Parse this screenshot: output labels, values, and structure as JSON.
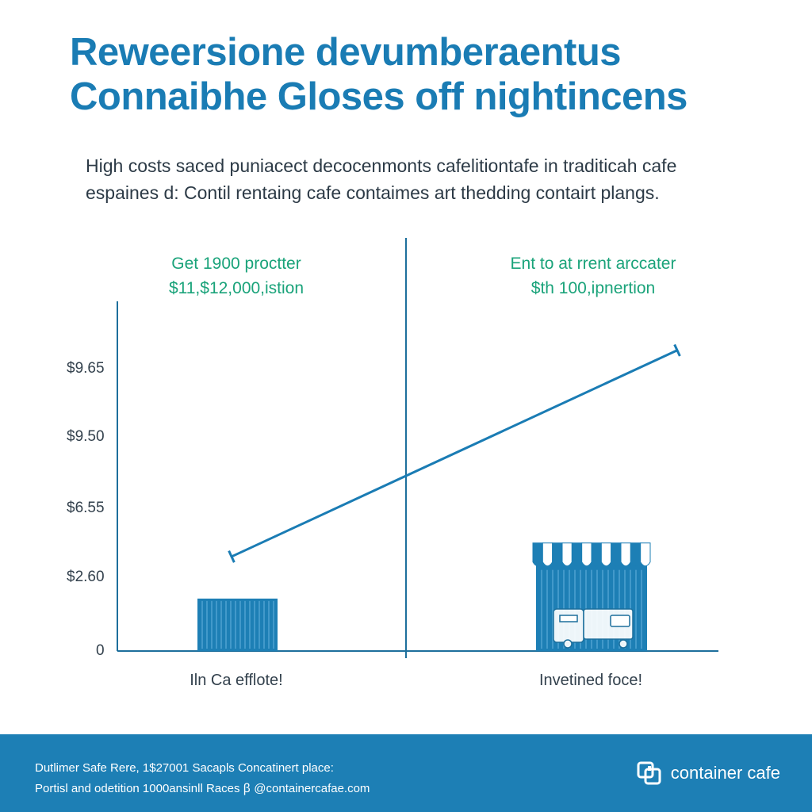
{
  "page": {
    "title_line1": "Reweersione devumberaentus",
    "title_line2": "Connaibhe Gloses off nightincens",
    "subtitle_line1": "High costs saced puniacect decocenmonts cafelitiontafe in traditicah cafe",
    "subtitle_line2": "espaines d: Contil rentaing cafe contaimes art thedding contairt plangs.",
    "colors": {
      "accent": "#1a7cb4",
      "annotation": "#1aa37a",
      "axis": "#1d6f9c",
      "footer_bg": "#1d7fb5"
    }
  },
  "chart_data": {
    "type": "line",
    "title": "",
    "xlabel": "",
    "ylabel": "",
    "y_ticks": [
      "0",
      "$2.60",
      "$6.55",
      "$9.50",
      "$9.65"
    ],
    "categories": [
      "Iln Ca efflote!",
      "Invetined foce!"
    ],
    "annotations": [
      {
        "line1": "Get 1900 proctter",
        "line2": "$11,$12,000,istion"
      },
      {
        "line1": "Ent to at rrent arccater",
        "line2": "$th 100,ipnertion"
      }
    ],
    "series": [
      {
        "values": [
          0.27,
          0.86
        ]
      }
    ],
    "bars": [
      {
        "value": 0.15,
        "icon": "shipping-container-icon"
      },
      {
        "value": 0.3,
        "icon": "container-cafe-stall-icon"
      }
    ],
    "ylim": [
      0,
      1
    ],
    "grid": false,
    "legend": "none"
  },
  "footer": {
    "line1": "Dutlimer Safe Rere, 1$27001 Sacapls Concatinert place:",
    "line2": "Portisl and odetition 1000ansinll Races ꞵ @containercafae.com",
    "brand_name": "container cafe",
    "brand_icon": "container-cafe-logo-icon"
  }
}
